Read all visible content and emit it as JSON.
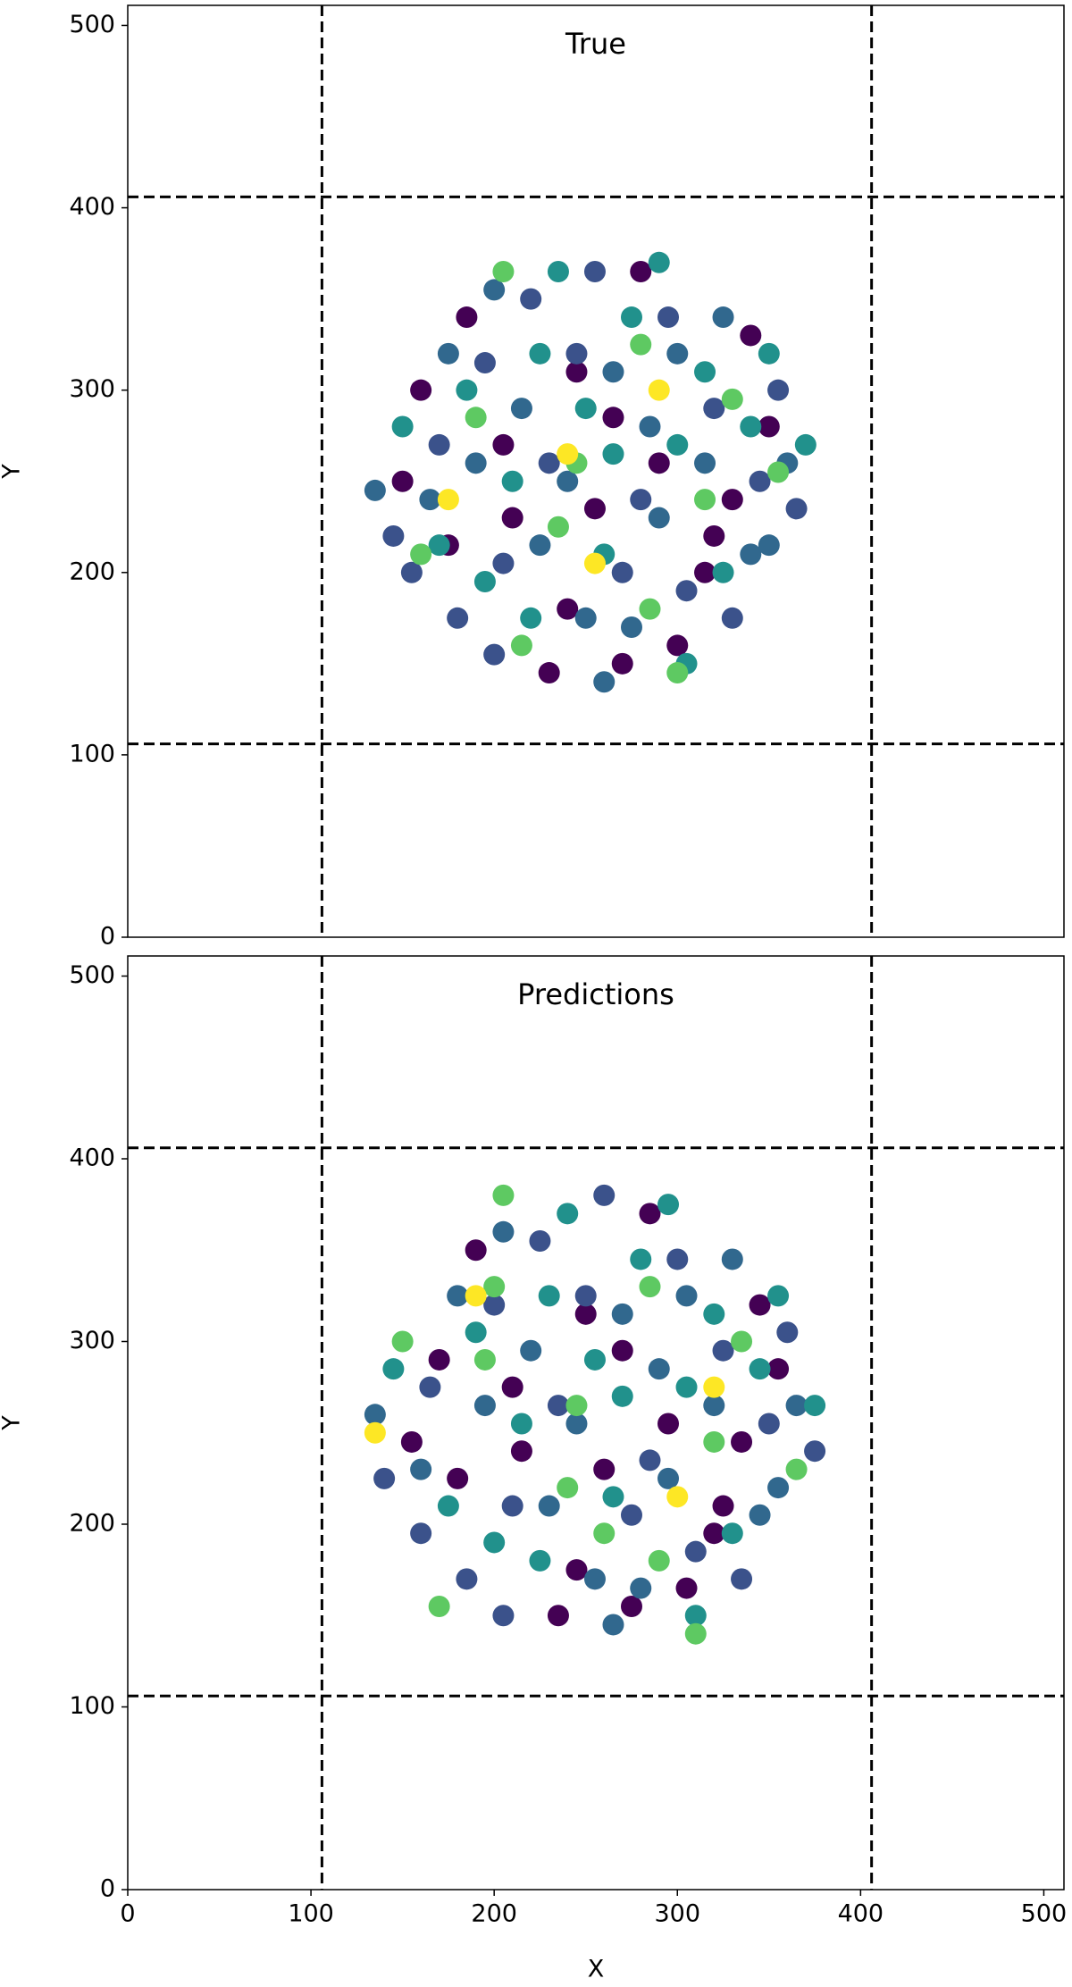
{
  "chart_data": [
    {
      "type": "scatter",
      "title": "True",
      "ylabel": "Y",
      "xlim": [
        0,
        511
      ],
      "ylim": [
        0,
        511
      ],
      "yticks": [
        0,
        100,
        200,
        300,
        400,
        500
      ],
      "vlines": [
        106,
        406
      ],
      "hlines": [
        106,
        406
      ],
      "series": [
        {
          "color": "#440154",
          "x": [
            160,
            185,
            210,
            240,
            265,
            290,
            315,
            340,
            175,
            230,
            280,
            330,
            205,
            255,
            300,
            350,
            150,
            245,
            270,
            320
          ],
          "y": [
            300,
            340,
            230,
            180,
            285,
            260,
            200,
            330,
            215,
            145,
            365,
            240,
            270,
            235,
            160,
            280,
            250,
            310,
            150,
            220
          ]
        },
        {
          "color": "#3b528b",
          "x": [
            145,
            170,
            195,
            220,
            245,
            270,
            295,
            320,
            345,
            365,
            155,
            180,
            205,
            230,
            255,
            280,
            305,
            330,
            355,
            200
          ],
          "y": [
            220,
            270,
            315,
            350,
            320,
            200,
            340,
            290,
            250,
            235,
            200,
            175,
            205,
            260,
            365,
            240,
            190,
            175,
            300,
            155
          ]
        },
        {
          "color": "#31688e",
          "x": [
            135,
            165,
            190,
            215,
            240,
            265,
            290,
            315,
            340,
            360,
            175,
            200,
            225,
            250,
            275,
            300,
            325,
            350,
            260,
            285
          ],
          "y": [
            245,
            240,
            260,
            290,
            250,
            310,
            230,
            260,
            210,
            260,
            320,
            355,
            215,
            175,
            170,
            320,
            340,
            215,
            140,
            280
          ]
        },
        {
          "color": "#21918c",
          "x": [
            150,
            170,
            195,
            225,
            250,
            275,
            300,
            325,
            350,
            370,
            185,
            210,
            235,
            260,
            290,
            315,
            340,
            220,
            265,
            305
          ],
          "y": [
            280,
            215,
            195,
            320,
            290,
            340,
            270,
            200,
            320,
            270,
            300,
            250,
            365,
            210,
            370,
            310,
            280,
            175,
            265,
            150
          ]
        },
        {
          "color": "#5ec962",
          "x": [
            160,
            205,
            245,
            285,
            330,
            355,
            190,
            235,
            280,
            315,
            215,
            300
          ],
          "y": [
            210,
            365,
            260,
            180,
            295,
            255,
            285,
            225,
            325,
            240,
            160,
            145
          ]
        },
        {
          "color": "#fde725",
          "x": [
            240,
            290,
            255,
            175
          ],
          "y": [
            265,
            300,
            205,
            240
          ]
        }
      ]
    },
    {
      "type": "scatter",
      "title": "Predictions",
      "xlabel": "X",
      "ylabel": "Y",
      "xlim": [
        0,
        511
      ],
      "ylim": [
        0,
        511
      ],
      "xticks": [
        0,
        100,
        200,
        300,
        400,
        500
      ],
      "yticks": [
        0,
        100,
        200,
        300,
        400,
        500
      ],
      "vlines": [
        106,
        406
      ],
      "hlines": [
        106,
        406
      ],
      "series": [
        {
          "color": "#440154",
          "x": [
            170,
            190,
            215,
            245,
            270,
            295,
            320,
            345,
            180,
            235,
            285,
            335,
            210,
            260,
            305,
            355,
            155,
            250,
            275,
            325
          ],
          "y": [
            290,
            350,
            240,
            175,
            295,
            255,
            195,
            320,
            225,
            150,
            370,
            245,
            275,
            230,
            165,
            285,
            245,
            315,
            155,
            210
          ]
        },
        {
          "color": "#3b528b",
          "x": [
            140,
            165,
            200,
            225,
            250,
            275,
            300,
            325,
            350,
            375,
            160,
            185,
            210,
            235,
            260,
            285,
            310,
            335,
            360,
            205
          ],
          "y": [
            225,
            275,
            320,
            355,
            325,
            205,
            345,
            295,
            255,
            240,
            195,
            170,
            210,
            265,
            380,
            235,
            185,
            170,
            305,
            150
          ]
        },
        {
          "color": "#31688e",
          "x": [
            135,
            160,
            195,
            220,
            245,
            270,
            295,
            320,
            345,
            365,
            180,
            205,
            230,
            255,
            280,
            305,
            330,
            355,
            265,
            290
          ],
          "y": [
            260,
            230,
            265,
            295,
            255,
            315,
            225,
            265,
            205,
            265,
            325,
            360,
            210,
            170,
            165,
            325,
            345,
            220,
            145,
            285
          ]
        },
        {
          "color": "#21918c",
          "x": [
            145,
            175,
            200,
            230,
            255,
            280,
            305,
            330,
            355,
            375,
            190,
            215,
            240,
            265,
            295,
            320,
            345,
            225,
            270,
            310
          ],
          "y": [
            285,
            210,
            190,
            325,
            290,
            345,
            275,
            195,
            325,
            265,
            305,
            255,
            370,
            215,
            375,
            315,
            285,
            180,
            270,
            150
          ]
        },
        {
          "color": "#5ec962",
          "x": [
            150,
            205,
            245,
            290,
            335,
            365,
            195,
            240,
            285,
            320,
            170,
            310,
            200,
            260
          ],
          "y": [
            300,
            380,
            265,
            180,
            300,
            230,
            290,
            220,
            330,
            245,
            155,
            140,
            330,
            195
          ]
        },
        {
          "color": "#fde725",
          "x": [
            190,
            300,
            320,
            135
          ],
          "y": [
            325,
            215,
            275,
            250
          ]
        }
      ]
    }
  ]
}
